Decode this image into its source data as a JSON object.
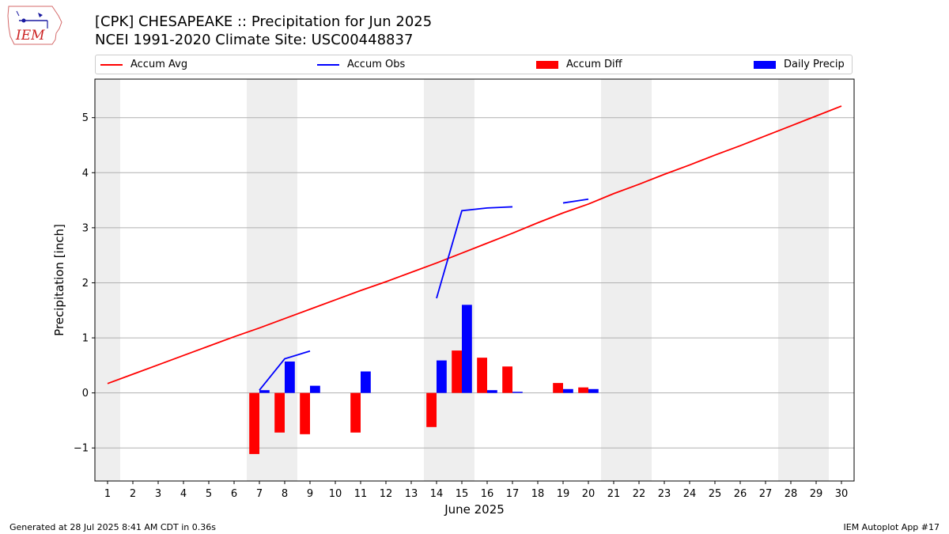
{
  "header": {
    "title_line1": "[CPK] CHESAPEAKE :: Precipitation for Jun 2025",
    "title_line2": "NCEI 1991-2020 Climate Site: USC00448837"
  },
  "logo": {
    "text": "IEM"
  },
  "footer": {
    "generated": "Generated at 28 Jul 2025 8:41 AM CDT in 0.36s",
    "app": "IEM Autoplot App #17"
  },
  "legend": {
    "items": [
      {
        "label": "Accum Avg",
        "kind": "line",
        "color": "#ff0000"
      },
      {
        "label": "Accum Obs",
        "kind": "line",
        "color": "#0000ff"
      },
      {
        "label": "Accum Diff",
        "kind": "bar",
        "color": "#ff0000"
      },
      {
        "label": "Daily Precip",
        "kind": "bar",
        "color": "#0000ff"
      }
    ]
  },
  "chart_data": {
    "type": "bar",
    "title": "[CPK] CHESAPEAKE :: Precipitation for Jun 2025",
    "xlabel": "June 2025",
    "ylabel": "Precipitation [inch]",
    "xlim": [
      0.5,
      30.5
    ],
    "ylim": [
      -1.6,
      5.7
    ],
    "yticks": [
      -1,
      0,
      1,
      2,
      3,
      4,
      5
    ],
    "ytick_labels": [
      "−1",
      "0",
      "1",
      "2",
      "3",
      "4",
      "5"
    ],
    "days": [
      1,
      2,
      3,
      4,
      5,
      6,
      7,
      8,
      9,
      10,
      11,
      12,
      13,
      14,
      15,
      16,
      17,
      18,
      19,
      20,
      21,
      22,
      23,
      24,
      25,
      26,
      27,
      28,
      29,
      30
    ],
    "weekend_bands": [
      [
        0.5,
        1.5
      ],
      [
        6.5,
        8.5
      ],
      [
        13.5,
        15.5
      ],
      [
        20.5,
        22.5
      ],
      [
        27.5,
        29.5
      ]
    ],
    "grid": true,
    "colors": {
      "avg": "#ff0000",
      "obs": "#0000ff",
      "diff": "#ff0000",
      "daily": "#0000ff",
      "band": "#eeeeee"
    },
    "series": [
      {
        "name": "Accum Avg",
        "kind": "line",
        "values": [
          0.17,
          0.34,
          0.51,
          0.68,
          0.85,
          1.02,
          1.18,
          1.35,
          1.52,
          1.69,
          1.86,
          2.02,
          2.19,
          2.36,
          2.54,
          2.72,
          2.9,
          3.09,
          3.27,
          3.43,
          3.62,
          3.79,
          3.97,
          4.14,
          4.32,
          4.49,
          4.67,
          4.85,
          5.03,
          5.21
        ]
      },
      {
        "name": "Accum Obs",
        "kind": "line",
        "values": [
          null,
          null,
          null,
          null,
          null,
          null,
          0.05,
          0.62,
          0.76,
          null,
          null,
          null,
          null,
          1.72,
          3.31,
          3.36,
          3.38,
          null,
          3.45,
          3.52,
          null,
          null,
          null,
          null,
          null,
          null,
          null,
          null,
          null,
          null
        ]
      },
      {
        "name": "Accum Diff",
        "kind": "bar",
        "values": [
          null,
          null,
          null,
          null,
          null,
          null,
          -1.11,
          -0.72,
          -0.75,
          null,
          -0.72,
          null,
          null,
          -0.62,
          0.77,
          0.64,
          0.48,
          null,
          0.18,
          0.1,
          null,
          null,
          null,
          null,
          null,
          null,
          null,
          null,
          null,
          null
        ]
      },
      {
        "name": "Daily Precip",
        "kind": "bar",
        "values": [
          null,
          null,
          null,
          null,
          null,
          null,
          0.05,
          0.57,
          0.13,
          null,
          0.39,
          null,
          null,
          0.59,
          1.6,
          0.05,
          0.02,
          null,
          0.07,
          0.07,
          null,
          null,
          null,
          null,
          null,
          null,
          null,
          null,
          null,
          null
        ]
      }
    ]
  }
}
